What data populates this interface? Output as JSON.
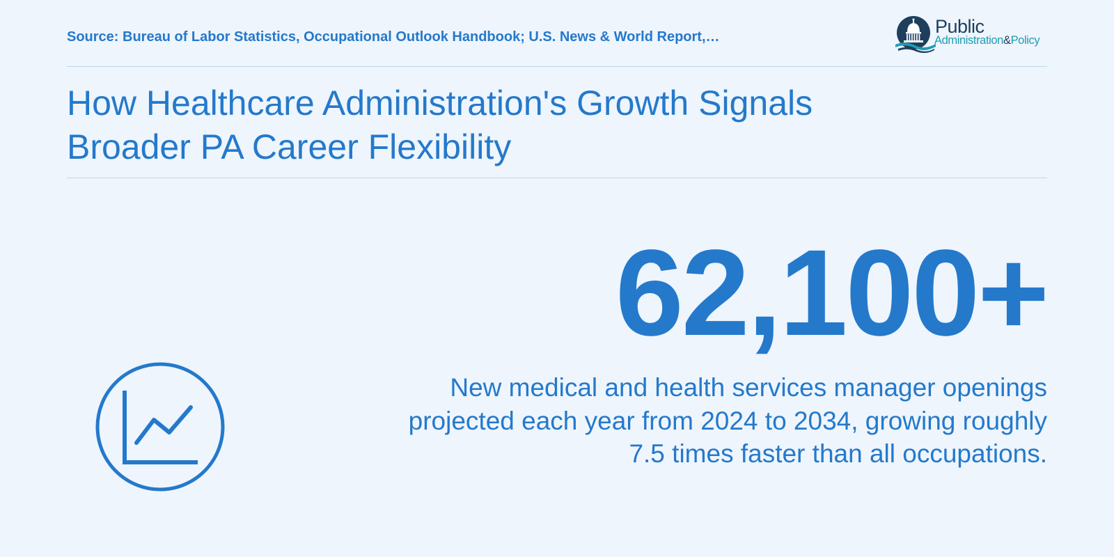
{
  "header": {
    "source": "Source: Bureau of Labor Statistics, Occupational Outlook Handbook; U.S. News & World Report,…",
    "logo": {
      "word_public": "Public",
      "word_administration": "Administration",
      "word_amp": "&",
      "word_policy": "Policy",
      "icon": "capitol-dome-icon"
    }
  },
  "title": {
    "line1": "How Healthcare Administration's Growth Signals",
    "line2": "Broader PA Career Flexibility"
  },
  "stat": {
    "value": "62,100+",
    "description": "New medical and health services manager openings projected each year from 2024 to 2034, growing roughly 7.5 times faster than all occupations.",
    "icon": "line-chart-icon"
  },
  "colors": {
    "accent": "#2479cb",
    "background": "#eef5fc",
    "rule": "#bcd9ef",
    "logo_navy": "#1d3f5d",
    "logo_teal": "#1f9db3"
  }
}
